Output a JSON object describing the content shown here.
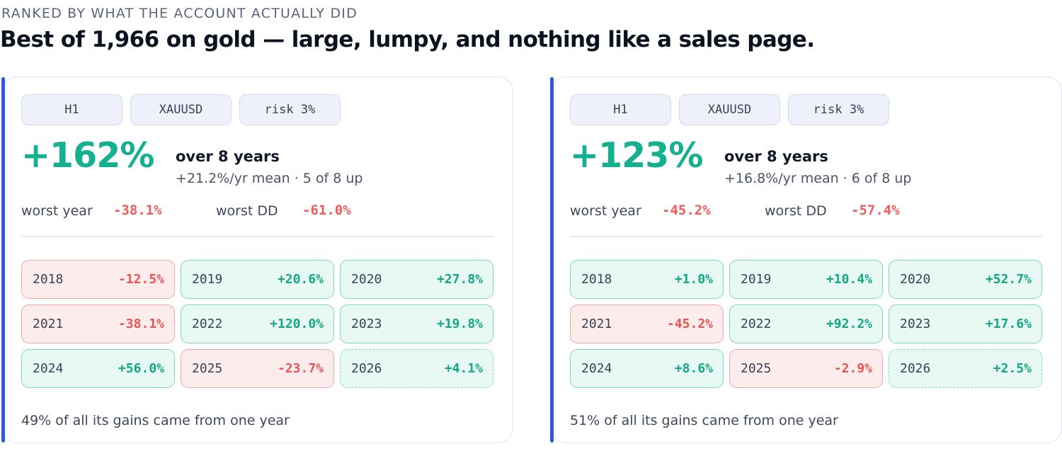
{
  "header": {
    "eyebrow": "RANKED BY WHAT THE ACCOUNT ACTUALLY DID",
    "headline": "Best of 1,966 on gold — large, lumpy, and nothing like a sales page."
  },
  "colors": {
    "accent": "#2f5ae0",
    "positive": "#14b08f",
    "negative": "#ef5b5b"
  },
  "cards": [
    {
      "chips": [
        "H1",
        "XAUUSD",
        "risk 3%"
      ],
      "total_return": "+162%",
      "span_title": "over 8 years",
      "span_sub": "+21.2%/yr mean · 5 of 8 up",
      "worst_year_label": "worst year",
      "worst_year_value": "-38.1%",
      "worst_dd_label": "worst DD",
      "worst_dd_value": "-61.0%",
      "years": [
        {
          "year": "2018",
          "ret": "-12.5%",
          "dir": "down",
          "partial": false
        },
        {
          "year": "2019",
          "ret": "+20.6%",
          "dir": "up",
          "partial": false
        },
        {
          "year": "2020",
          "ret": "+27.8%",
          "dir": "up",
          "partial": false
        },
        {
          "year": "2021",
          "ret": "-38.1%",
          "dir": "down",
          "partial": false
        },
        {
          "year": "2022",
          "ret": "+120.0%",
          "dir": "up",
          "partial": false
        },
        {
          "year": "2023",
          "ret": "+19.8%",
          "dir": "up",
          "partial": false
        },
        {
          "year": "2024",
          "ret": "+56.0%",
          "dir": "up",
          "partial": false
        },
        {
          "year": "2025",
          "ret": "-23.7%",
          "dir": "down",
          "partial": false
        },
        {
          "year": "2026",
          "ret": "+4.1%",
          "dir": "up",
          "partial": true
        }
      ],
      "footnote": "49% of all its gains came from one year"
    },
    {
      "chips": [
        "H1",
        "XAUUSD",
        "risk 3%"
      ],
      "total_return": "+123%",
      "span_title": "over 8 years",
      "span_sub": "+16.8%/yr mean · 6 of 8 up",
      "worst_year_label": "worst year",
      "worst_year_value": "-45.2%",
      "worst_dd_label": "worst DD",
      "worst_dd_value": "-57.4%",
      "years": [
        {
          "year": "2018",
          "ret": "+1.0%",
          "dir": "up",
          "partial": false
        },
        {
          "year": "2019",
          "ret": "+10.4%",
          "dir": "up",
          "partial": false
        },
        {
          "year": "2020",
          "ret": "+52.7%",
          "dir": "up",
          "partial": false
        },
        {
          "year": "2021",
          "ret": "-45.2%",
          "dir": "down",
          "partial": false
        },
        {
          "year": "2022",
          "ret": "+92.2%",
          "dir": "up",
          "partial": false
        },
        {
          "year": "2023",
          "ret": "+17.6%",
          "dir": "up",
          "partial": false
        },
        {
          "year": "2024",
          "ret": "+8.6%",
          "dir": "up",
          "partial": false
        },
        {
          "year": "2025",
          "ret": "-2.9%",
          "dir": "down",
          "partial": false
        },
        {
          "year": "2026",
          "ret": "+2.5%",
          "dir": "up",
          "partial": true
        }
      ],
      "footnote": "51% of all its gains came from one year"
    }
  ]
}
